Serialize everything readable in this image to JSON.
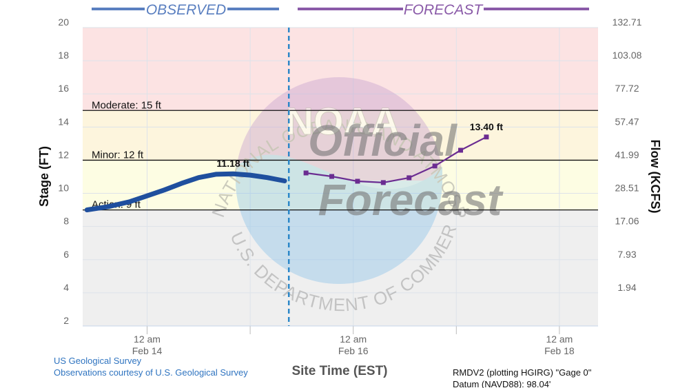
{
  "chart_data": {
    "type": "line",
    "headers": {
      "observed": "OBSERVED",
      "forecast": "FORECAST"
    },
    "xlabel": "Site Time (EST)",
    "ylabel": "Stage (FT)",
    "y2label": "Flow (KCFS)",
    "xlim": [
      "Feb 13 09:00",
      "Feb 18 09:00"
    ],
    "ylim": [
      2,
      20
    ],
    "yticks": [
      2,
      4,
      6,
      8,
      10,
      12,
      14,
      16,
      18,
      20
    ],
    "grid": true,
    "xticks": [
      {
        "value": "Feb 14 00:00",
        "label": "12 am\nFeb 14"
      },
      {
        "value": "Feb 16 00:00",
        "label": "12 am\nFeb 16"
      },
      {
        "value": "Feb 18 00:00",
        "label": "12 am\nFeb 18"
      }
    ],
    "xminorticks": [
      "Feb 15 00:00",
      "Feb 17 00:00"
    ],
    "rating_ticks": [
      {
        "stage": 20,
        "flow": 132.71
      },
      {
        "stage": 18,
        "flow": 103.08
      },
      {
        "stage": 16,
        "flow": 77.72
      },
      {
        "stage": 14,
        "flow": 57.47
      },
      {
        "stage": 12,
        "flow": 41.99
      },
      {
        "stage": 10,
        "flow": 28.51
      },
      {
        "stage": 8,
        "flow": 17.06
      },
      {
        "stage": 6,
        "flow": 7.93
      },
      {
        "stage": 4,
        "flow": 1.94
      }
    ],
    "flood_stages": [
      {
        "label": "Action: 9 ft",
        "value": 9,
        "color": "#fdfde3"
      },
      {
        "label": "Minor: 12 ft",
        "value": 12,
        "color": "#fdf5dd"
      },
      {
        "label": "Moderate: 15 ft",
        "value": 15,
        "color": "#fce3e3"
      }
    ],
    "below_action_color": "#efefef",
    "forecast_start": "Feb 15 09:00",
    "series": [
      {
        "name": "Observed",
        "color": "#1f4f9e",
        "x": [
          "Feb 13 10:00",
          "Feb 13 15:00",
          "Feb 13 20:00",
          "Feb 14 00:00",
          "Feb 14 04:00",
          "Feb 14 08:00",
          "Feb 14 12:00",
          "Feb 14 16:00",
          "Feb 14 20:00",
          "Feb 15 00:00",
          "Feb 15 04:00",
          "Feb 15 08:00"
        ],
        "values": [
          9.0,
          9.2,
          9.5,
          9.85,
          10.2,
          10.6,
          10.95,
          11.15,
          11.18,
          11.1,
          10.95,
          10.75
        ],
        "value_labels": [
          null,
          null,
          null,
          null,
          null,
          null,
          null,
          null,
          "11.18 ft",
          null,
          null,
          null
        ]
      },
      {
        "name": "Forecast",
        "color": "#6b2c91",
        "x": [
          "Feb 15 13:00",
          "Feb 15 19:00",
          "Feb 16 01:00",
          "Feb 16 07:00",
          "Feb 16 13:00",
          "Feb 16 19:00",
          "Feb 17 01:00",
          "Feb 17 07:00"
        ],
        "values": [
          11.23,
          11.02,
          10.73,
          10.65,
          10.94,
          11.65,
          12.6,
          13.4
        ],
        "value_labels": [
          null,
          null,
          null,
          null,
          null,
          null,
          null,
          "13.40 ft"
        ]
      }
    ]
  },
  "watermark": {
    "top_arc": "NATIONAL OCEANIC AND ATMOSPHERIC ADMINISTRATION",
    "bottom_arc": "U.S. DEPARTMENT OF COMMERCE",
    "logo": "NOAA",
    "line1": "Official",
    "line2": "Forecast"
  },
  "footer": {
    "source_lines": [
      "US Geological Survey",
      "Observations courtesy of U.S. Geological Survey"
    ],
    "site_lines": [
      "RMDV2 (plotting HGIRG) \"Gage 0\"",
      "Datum (NAVD88): 98.04'"
    ]
  }
}
